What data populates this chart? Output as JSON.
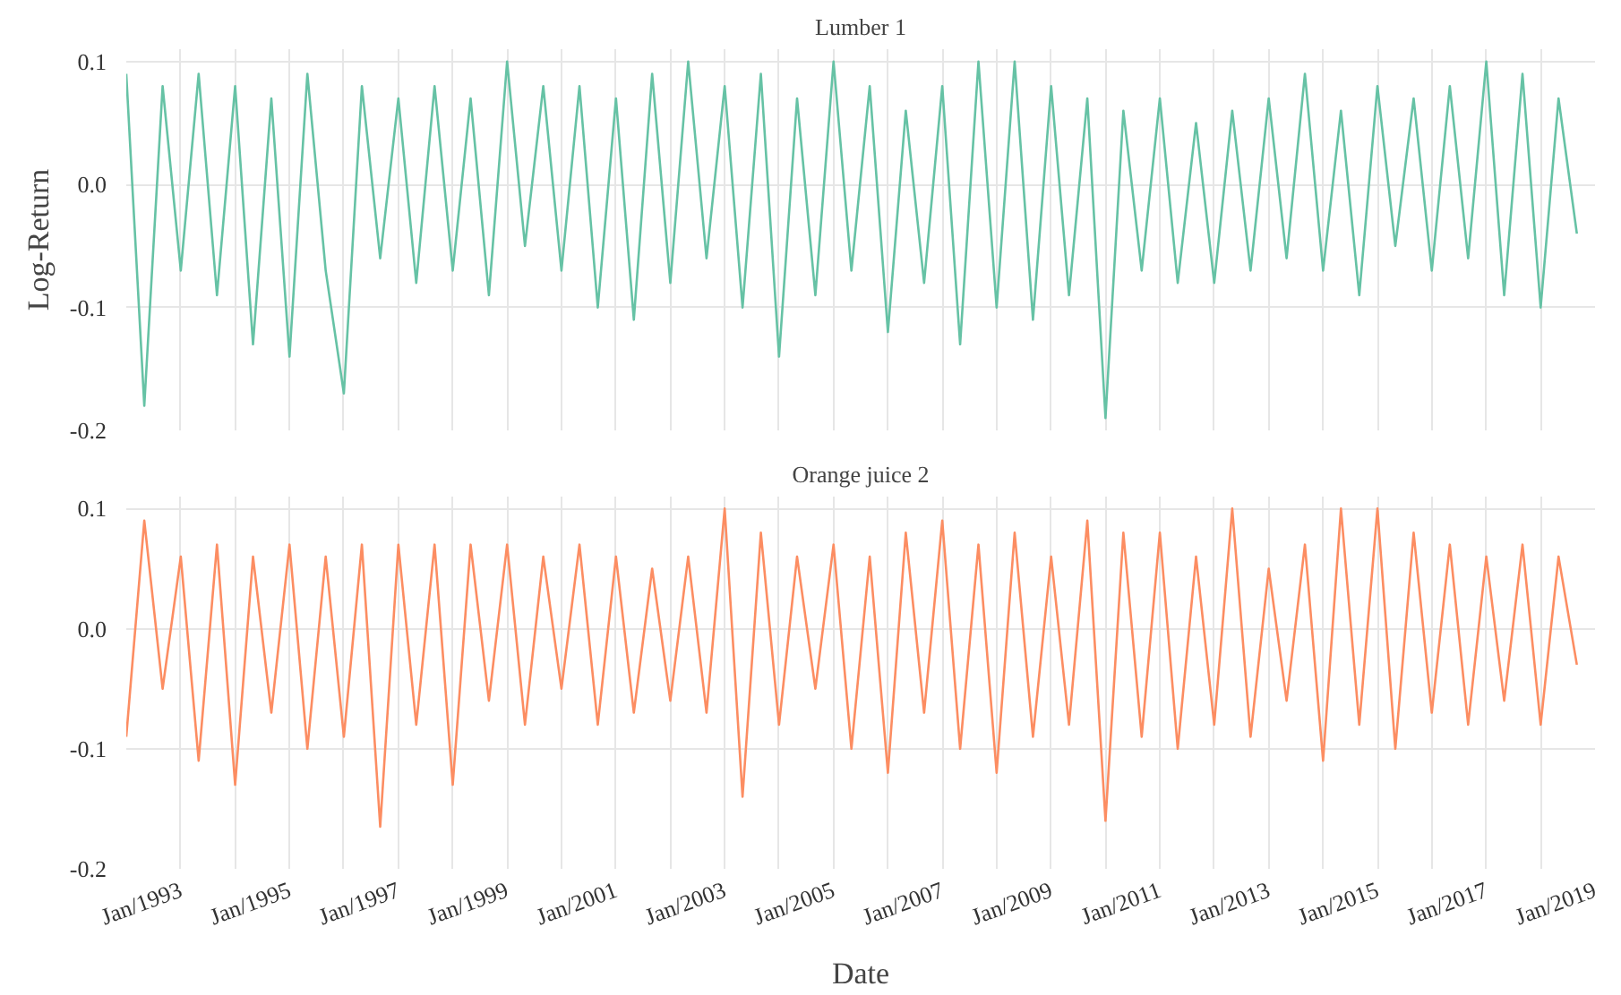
{
  "chart_data": [
    {
      "type": "line",
      "title": "Lumber 1",
      "ylabel": "Log-Return",
      "tick_labels": "y",
      "grid": true,
      "xlim": [
        "1992-01",
        "2019-01"
      ],
      "ylim": [
        -0.2,
        0.11
      ],
      "yticks": [
        -0.2,
        -0.1,
        {
          "value": 0.0,
          "label": "0.0"
        },
        0.1
      ],
      "xticks": [
        {
          "value": "1993-01",
          "label": null
        },
        {
          "value": "1994-01",
          "label": null
        },
        {
          "value": "1995-01",
          "label": null
        },
        {
          "value": "1996-01",
          "label": null
        },
        {
          "value": "1997-01",
          "label": null
        },
        {
          "value": "1998-01",
          "label": null
        },
        {
          "value": "1999-01",
          "label": null
        },
        {
          "value": "2000-01",
          "label": null
        },
        {
          "value": "2001-01",
          "label": null
        },
        {
          "value": "2002-01",
          "label": null
        },
        {
          "value": "2003-01",
          "label": null
        },
        {
          "value": "2004-01",
          "label": null
        },
        {
          "value": "2005-01",
          "label": null
        },
        {
          "value": "2006-01",
          "label": null
        },
        {
          "value": "2007-01",
          "label": null
        },
        {
          "value": "2008-01",
          "label": null
        },
        {
          "value": "2009-01",
          "label": null
        },
        {
          "value": "2010-01",
          "label": null
        },
        {
          "value": "2011-01",
          "label": null
        },
        {
          "value": "2012-01",
          "label": null
        },
        {
          "value": "2013-01",
          "label": null
        },
        {
          "value": "2014-01",
          "label": null
        },
        {
          "value": "2015-01",
          "label": null
        },
        {
          "value": "2016-01",
          "label": null
        },
        {
          "value": "2017-01",
          "label": null
        },
        {
          "value": "2018-01",
          "label": null
        },
        {
          "value": "2019-01",
          "label": null
        }
      ],
      "x": [
        "1992-01",
        "1992-05",
        "1992-09",
        "1993-01",
        "1993-05",
        "1993-09",
        "1994-01",
        "1994-05",
        "1994-09",
        "1995-01",
        "1995-05",
        "1995-09",
        "1996-01",
        "1996-05",
        "1996-09",
        "1997-01",
        "1997-05",
        "1997-09",
        "1998-01",
        "1998-05",
        "1998-09",
        "1999-01",
        "1999-05",
        "1999-09",
        "2000-01",
        "2000-05",
        "2000-09",
        "2001-01",
        "2001-05",
        "2001-09",
        "2002-01",
        "2002-05",
        "2002-09",
        "2003-01",
        "2003-05",
        "2003-09",
        "2004-01",
        "2004-05",
        "2004-09",
        "2005-01",
        "2005-05",
        "2005-09",
        "2006-01",
        "2006-05",
        "2006-09",
        "2007-01",
        "2007-05",
        "2007-09",
        "2008-01",
        "2008-05",
        "2008-09",
        "2009-01",
        "2009-05",
        "2009-09",
        "2010-01",
        "2010-05",
        "2010-09",
        "2011-01",
        "2011-05",
        "2011-09",
        "2012-01",
        "2012-05",
        "2012-09",
        "2013-01",
        "2013-05",
        "2013-09",
        "2014-01",
        "2014-05",
        "2014-09",
        "2015-01",
        "2015-05",
        "2015-09",
        "2016-01",
        "2016-05",
        "2016-09",
        "2017-01",
        "2017-05",
        "2017-09",
        "2018-01",
        "2018-05",
        "2018-09"
      ],
      "series": [
        {
          "color": "#66c2a5",
          "values": [
            0.09,
            -0.18,
            0.08,
            -0.07,
            0.09,
            -0.09,
            0.08,
            -0.13,
            0.07,
            -0.14,
            0.09,
            -0.07,
            -0.17,
            0.08,
            -0.06,
            0.07,
            -0.08,
            0.08,
            -0.07,
            0.07,
            -0.09,
            0.1,
            -0.05,
            0.08,
            -0.07,
            0.08,
            -0.1,
            0.07,
            -0.11,
            0.09,
            -0.08,
            0.1,
            -0.06,
            0.08,
            -0.1,
            0.09,
            -0.14,
            0.07,
            -0.09,
            0.1,
            -0.07,
            0.08,
            -0.12,
            0.06,
            -0.08,
            0.08,
            -0.13,
            0.1,
            -0.1,
            0.1,
            -0.11,
            0.08,
            -0.09,
            0.07,
            -0.19,
            0.06,
            -0.07,
            0.07,
            -0.08,
            0.05,
            -0.08,
            0.06,
            -0.07,
            0.07,
            -0.06,
            0.09,
            -0.07,
            0.06,
            -0.09,
            0.08,
            -0.05,
            0.07,
            -0.07,
            0.08,
            -0.06,
            0.1,
            -0.09,
            0.09,
            -0.1,
            0.07,
            -0.04
          ]
        }
      ]
    },
    {
      "type": "line",
      "title": "Orange juice 2",
      "xlabel": "Date",
      "grid": true,
      "xlim": [
        "1992-01",
        "2019-01"
      ],
      "ylim": [
        -0.2,
        0.11
      ],
      "yticks": [
        -0.2,
        -0.1,
        {
          "value": 0.0,
          "label": "0.0"
        },
        0.1
      ],
      "xticks": [
        {
          "value": "1993-01",
          "label": "Jan/1993"
        },
        {
          "value": "1994-01",
          "label": null
        },
        {
          "value": "1995-01",
          "label": "Jan/1995"
        },
        {
          "value": "1996-01",
          "label": null
        },
        {
          "value": "1997-01",
          "label": "Jan/1997"
        },
        {
          "value": "1998-01",
          "label": null
        },
        {
          "value": "1999-01",
          "label": "Jan/1999"
        },
        {
          "value": "2000-01",
          "label": null
        },
        {
          "value": "2001-01",
          "label": "Jan/2001"
        },
        {
          "value": "2002-01",
          "label": null
        },
        {
          "value": "2003-01",
          "label": "Jan/2003"
        },
        {
          "value": "2004-01",
          "label": null
        },
        {
          "value": "2005-01",
          "label": "Jan/2005"
        },
        {
          "value": "2006-01",
          "label": null
        },
        {
          "value": "2007-01",
          "label": "Jan/2007"
        },
        {
          "value": "2008-01",
          "label": null
        },
        {
          "value": "2009-01",
          "label": "Jan/2009"
        },
        {
          "value": "2010-01",
          "label": null
        },
        {
          "value": "2011-01",
          "label": "Jan/2011"
        },
        {
          "value": "2012-01",
          "label": null
        },
        {
          "value": "2013-01",
          "label": "Jan/2013"
        },
        {
          "value": "2014-01",
          "label": null
        },
        {
          "value": "2015-01",
          "label": "Jan/2015"
        },
        {
          "value": "2016-01",
          "label": null
        },
        {
          "value": "2017-01",
          "label": "Jan/2017"
        },
        {
          "value": "2018-01",
          "label": null
        },
        {
          "value": "2019-01",
          "label": "Jan/2019"
        }
      ],
      "x": [
        "1992-01",
        "1992-05",
        "1992-09",
        "1993-01",
        "1993-05",
        "1993-09",
        "1994-01",
        "1994-05",
        "1994-09",
        "1995-01",
        "1995-05",
        "1995-09",
        "1996-01",
        "1996-05",
        "1996-09",
        "1997-01",
        "1997-05",
        "1997-09",
        "1998-01",
        "1998-05",
        "1998-09",
        "1999-01",
        "1999-05",
        "1999-09",
        "2000-01",
        "2000-05",
        "2000-09",
        "2001-01",
        "2001-05",
        "2001-09",
        "2002-01",
        "2002-05",
        "2002-09",
        "2003-01",
        "2003-05",
        "2003-09",
        "2004-01",
        "2004-05",
        "2004-09",
        "2005-01",
        "2005-05",
        "2005-09",
        "2006-01",
        "2006-05",
        "2006-09",
        "2007-01",
        "2007-05",
        "2007-09",
        "2008-01",
        "2008-05",
        "2008-09",
        "2009-01",
        "2009-05",
        "2009-09",
        "2010-01",
        "2010-05",
        "2010-09",
        "2011-01",
        "2011-05",
        "2011-09",
        "2012-01",
        "2012-05",
        "2012-09",
        "2013-01",
        "2013-05",
        "2013-09",
        "2014-01",
        "2014-05",
        "2014-09",
        "2015-01",
        "2015-05",
        "2015-09",
        "2016-01",
        "2016-05",
        "2016-09",
        "2017-01",
        "2017-05",
        "2017-09",
        "2018-01",
        "2018-05",
        "2018-09"
      ],
      "series": [
        {
          "color": "#fc8d62",
          "values": [
            -0.09,
            0.09,
            -0.05,
            0.06,
            -0.11,
            0.07,
            -0.13,
            0.06,
            -0.07,
            0.07,
            -0.1,
            0.06,
            -0.09,
            0.07,
            -0.165,
            0.07,
            -0.08,
            0.07,
            -0.13,
            0.07,
            -0.06,
            0.07,
            -0.08,
            0.06,
            -0.05,
            0.07,
            -0.08,
            0.06,
            -0.07,
            0.05,
            -0.06,
            0.06,
            -0.07,
            0.1,
            -0.14,
            0.08,
            -0.08,
            0.06,
            -0.05,
            0.07,
            -0.1,
            0.06,
            -0.12,
            0.08,
            -0.07,
            0.09,
            -0.1,
            0.07,
            -0.12,
            0.08,
            -0.09,
            0.06,
            -0.08,
            0.09,
            -0.16,
            0.08,
            -0.09,
            0.08,
            -0.1,
            0.06,
            -0.08,
            0.1,
            -0.09,
            0.05,
            -0.06,
            0.07,
            -0.11,
            0.1,
            -0.08,
            0.1,
            -0.1,
            0.08,
            -0.07,
            0.07,
            -0.08,
            0.06,
            -0.06,
            0.07,
            -0.08,
            0.06,
            -0.03
          ]
        }
      ]
    }
  ]
}
